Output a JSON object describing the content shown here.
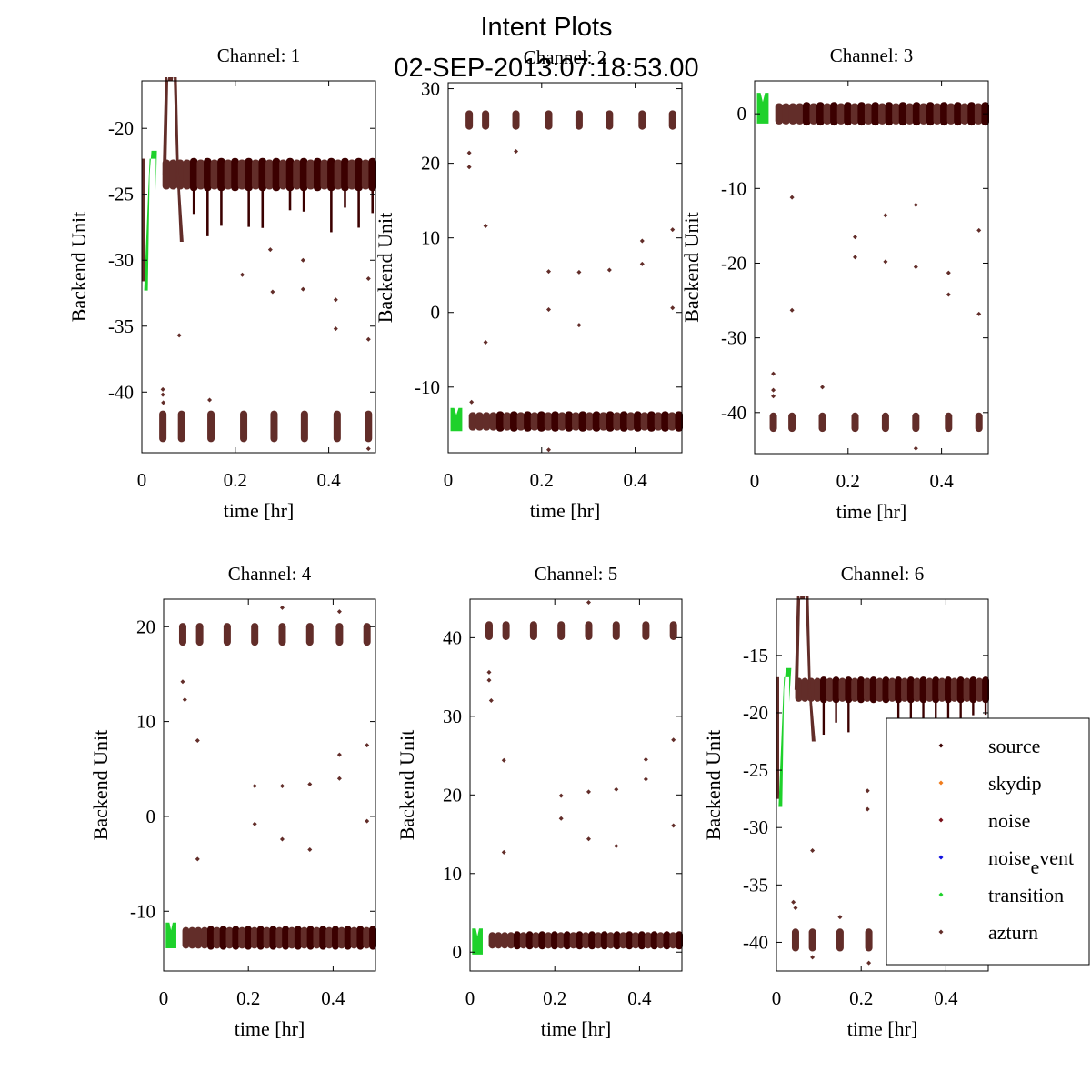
{
  "chart_data": {
    "type": "scatter",
    "title": "Intent Plots",
    "subtitle": "02-SEP-2013:07:18:53.00",
    "legend": {
      "placement": "inside-lower-right of Channel 6 panel",
      "entries": [
        {
          "label": "source",
          "color": "#3b0000"
        },
        {
          "label": "skydip",
          "color": "#f07c1c"
        },
        {
          "label": "noise",
          "color": "#7a0f1a"
        },
        {
          "label": "noise_event",
          "display": "noise{e}vent",
          "color": "#1010e0"
        },
        {
          "label": "transition",
          "color": "#1ed12b"
        },
        {
          "label": "azturn",
          "color": "#622d29"
        }
      ]
    },
    "panels": [
      {
        "title": "Channel: 1",
        "xlabel": "time [hr]",
        "ylabel": "Backend Unit",
        "xlim": [
          0,
          0.5
        ],
        "ylim": [
          -44.6,
          -16.4
        ],
        "xticks": [
          0,
          0.2,
          0.4
        ],
        "xticklabels": [
          "0",
          "0.2",
          "0.4"
        ],
        "yticks": [
          -20,
          -25,
          -30,
          -35,
          -40
        ],
        "yticklabels": [
          "-20",
          "-25",
          "-30",
          "-35",
          "-40"
        ],
        "baseline": -23.5,
        "band": 1.2,
        "tails_down": 3.5,
        "transition": {
          "x": [
            0.005,
            0.03
          ],
          "ymin": -32.3,
          "ymax": -21.7
        },
        "spike": {
          "x": 0.062,
          "peak": -16.4,
          "dip": -28.6
        },
        "initial_drop": -31.6,
        "clusters": {
          "y": -42.6,
          "spread": 1.2,
          "x": [
            0.045,
            0.085,
            0.148,
            0.218,
            0.283,
            0.348,
            0.418,
            0.485
          ]
        },
        "outliers": [
          [
            0.045,
            -40.2
          ],
          [
            0.045,
            -39.8
          ],
          [
            0.046,
            -40.8
          ],
          [
            0.145,
            -40.6
          ],
          [
            0.215,
            -31.1
          ],
          [
            0.28,
            -32.4
          ],
          [
            0.275,
            -29.2
          ],
          [
            0.345,
            -30.0
          ],
          [
            0.345,
            -32.2
          ],
          [
            0.415,
            -33.0
          ],
          [
            0.415,
            -35.2
          ],
          [
            0.485,
            -31.4
          ],
          [
            0.485,
            -36.0
          ],
          [
            0.08,
            -35.7
          ],
          [
            0.485,
            -44.3
          ]
        ]
      },
      {
        "title": "Channel: 2",
        "xlabel": "time [hr]",
        "ylabel": "Backend Unit",
        "xlim": [
          0,
          0.5
        ],
        "ylim": [
          -18.8,
          30.8
        ],
        "xticks": [
          0,
          0.2,
          0.4
        ],
        "xticklabels": [
          "0",
          "0.2",
          "0.4"
        ],
        "yticks": [
          30,
          20,
          10,
          0,
          -10
        ],
        "yticklabels": [
          "30",
          "20",
          "10",
          "0",
          "-10"
        ],
        "baseline": -14.6,
        "band": 1.3,
        "tails_down": 0,
        "transition": {
          "x": [
            0.005,
            0.03
          ],
          "ymin": -15.9,
          "ymax": -12.8
        },
        "spike": null,
        "initial_drop": null,
        "clusters": {
          "y": 25.8,
          "spread": 1.3,
          "x": [
            0.045,
            0.08,
            0.145,
            0.215,
            0.28,
            0.345,
            0.415,
            0.48
          ]
        },
        "outliers": [
          [
            0.045,
            19.5
          ],
          [
            0.045,
            21.4
          ],
          [
            0.08,
            11.6
          ],
          [
            0.08,
            -4.0
          ],
          [
            0.145,
            21.6
          ],
          [
            0.215,
            5.5
          ],
          [
            0.215,
            0.4
          ],
          [
            0.28,
            5.4
          ],
          [
            0.28,
            -1.7
          ],
          [
            0.345,
            5.7
          ],
          [
            0.415,
            9.6
          ],
          [
            0.415,
            6.5
          ],
          [
            0.48,
            11.1
          ],
          [
            0.48,
            0.6
          ],
          [
            0.215,
            -18.4
          ],
          [
            0.05,
            -12.0
          ]
        ]
      },
      {
        "title": "Channel: 3",
        "xlabel": "time [hr]",
        "ylabel": "Backend Unit",
        "xlim": [
          0,
          0.5
        ],
        "ylim": [
          -45.5,
          4.4
        ],
        "xticks": [
          0,
          0.2,
          0.4
        ],
        "xticklabels": [
          "0",
          "0.2",
          "0.4"
        ],
        "yticks": [
          0,
          -10,
          -20,
          -30,
          -40
        ],
        "yticklabels": [
          "0",
          "-10",
          "-20",
          "-30",
          "-40"
        ],
        "baseline": 0.0,
        "band": 1.5,
        "tails_down": 0,
        "transition": {
          "x": [
            0.005,
            0.03
          ],
          "ymin": -1.3,
          "ymax": 2.8
        },
        "spike": null,
        "initial_drop": null,
        "clusters": {
          "y": -41.3,
          "spread": 1.3,
          "x": [
            0.04,
            0.08,
            0.145,
            0.215,
            0.28,
            0.345,
            0.415,
            0.48
          ]
        },
        "outliers": [
          [
            0.04,
            -34.8
          ],
          [
            0.04,
            -37.0
          ],
          [
            0.04,
            -37.8
          ],
          [
            0.08,
            -11.2
          ],
          [
            0.08,
            -26.3
          ],
          [
            0.145,
            -36.6
          ],
          [
            0.215,
            -16.5
          ],
          [
            0.215,
            -19.2
          ],
          [
            0.28,
            -13.6
          ],
          [
            0.28,
            -19.8
          ],
          [
            0.345,
            -12.2
          ],
          [
            0.345,
            -20.5
          ],
          [
            0.415,
            -21.3
          ],
          [
            0.415,
            -24.2
          ],
          [
            0.48,
            -15.6
          ],
          [
            0.48,
            -26.8
          ],
          [
            0.345,
            -44.8
          ]
        ]
      },
      {
        "title": "Channel: 4",
        "xlabel": "time [hr]",
        "ylabel": "Backend Unit",
        "xlim": [
          0,
          0.5
        ],
        "ylim": [
          -16.3,
          22.9
        ],
        "xticks": [
          0,
          0.2,
          0.4
        ],
        "xticklabels": [
          "0",
          "0.2",
          "0.4"
        ],
        "yticks": [
          20,
          10,
          0,
          -10
        ],
        "yticklabels": [
          "20",
          "10",
          "0",
          "-10"
        ],
        "baseline": -12.8,
        "band": 1.2,
        "tails_down": 0,
        "transition": {
          "x": [
            0.005,
            0.03
          ],
          "ymin": -13.9,
          "ymax": -11.2
        },
        "spike": null,
        "initial_drop": null,
        "clusters": {
          "y": 19.2,
          "spread": 1.2,
          "x": [
            0.045,
            0.085,
            0.15,
            0.215,
            0.28,
            0.345,
            0.415,
            0.48
          ]
        },
        "outliers": [
          [
            0.045,
            14.2
          ],
          [
            0.05,
            12.3
          ],
          [
            0.08,
            8.0
          ],
          [
            0.08,
            -4.5
          ],
          [
            0.215,
            3.2
          ],
          [
            0.215,
            -0.8
          ],
          [
            0.28,
            3.2
          ],
          [
            0.28,
            -2.4
          ],
          [
            0.345,
            3.4
          ],
          [
            0.345,
            -3.5
          ],
          [
            0.415,
            6.5
          ],
          [
            0.415,
            4.0
          ],
          [
            0.48,
            7.5
          ],
          [
            0.48,
            -0.5
          ],
          [
            0.28,
            22.0
          ],
          [
            0.415,
            21.6
          ]
        ]
      },
      {
        "title": "Channel: 5",
        "xlabel": "time [hr]",
        "ylabel": "Backend Unit",
        "xlim": [
          0,
          0.5
        ],
        "ylim": [
          -2.4,
          44.9
        ],
        "xticks": [
          0,
          0.2,
          0.4
        ],
        "xticklabels": [
          "0",
          "0.2",
          "0.4"
        ],
        "yticks": [
          40,
          30,
          20,
          10,
          0
        ],
        "yticklabels": [
          "40",
          "30",
          "20",
          "10",
          "0"
        ],
        "baseline": 1.5,
        "band": 1.1,
        "tails_down": 0,
        "transition": {
          "x": [
            0.005,
            0.03
          ],
          "ymin": -0.3,
          "ymax": 3.0
        },
        "spike": null,
        "initial_drop": null,
        "clusters": {
          "y": 40.9,
          "spread": 1.2,
          "x": [
            0.045,
            0.085,
            0.15,
            0.215,
            0.28,
            0.345,
            0.415,
            0.48
          ]
        },
        "outliers": [
          [
            0.045,
            35.6
          ],
          [
            0.045,
            34.6
          ],
          [
            0.05,
            32.0
          ],
          [
            0.08,
            24.4
          ],
          [
            0.08,
            12.7
          ],
          [
            0.215,
            19.9
          ],
          [
            0.215,
            17.0
          ],
          [
            0.28,
            20.4
          ],
          [
            0.28,
            14.4
          ],
          [
            0.345,
            20.7
          ],
          [
            0.345,
            13.5
          ],
          [
            0.415,
            24.5
          ],
          [
            0.415,
            22.0
          ],
          [
            0.48,
            27.0
          ],
          [
            0.48,
            16.1
          ],
          [
            0.28,
            44.5
          ]
        ]
      },
      {
        "title": "Channel: 6",
        "xlabel": "time [hr]",
        "ylabel": "Backend Unit",
        "xlim": [
          0,
          0.5
        ],
        "ylim": [
          -42.5,
          -10.1
        ],
        "xticks": [
          0,
          0.2,
          0.4
        ],
        "xticklabels": [
          "0",
          "0.2",
          "0.4"
        ],
        "yticks": [
          -15,
          -20,
          -25,
          -30,
          -35,
          -40
        ],
        "yticklabels": [
          "-15",
          "-20",
          "-25",
          "-30",
          "-35",
          "-40"
        ],
        "baseline": -18.0,
        "band": 1.1,
        "tails_down": 3.0,
        "transition": {
          "x": [
            0.005,
            0.03
          ],
          "ymin": -28.2,
          "ymax": -16.1
        },
        "spike": {
          "x": 0.062,
          "peak": -10.1,
          "dip": -22.5
        },
        "initial_drop": -27.5,
        "clusters": {
          "y": -39.8,
          "spread": 1.0,
          "x": [
            0.045,
            0.085,
            0.15,
            0.218
          ]
        },
        "outliers": [
          [
            0.04,
            -36.5
          ],
          [
            0.045,
            -37.0
          ],
          [
            0.085,
            -32.0
          ],
          [
            0.15,
            -37.8
          ],
          [
            0.085,
            -41.3
          ],
          [
            0.218,
            -41.8
          ],
          [
            0.215,
            -26.8
          ],
          [
            0.215,
            -28.4
          ],
          [
            0.22,
            -39.0
          ]
        ]
      }
    ]
  }
}
